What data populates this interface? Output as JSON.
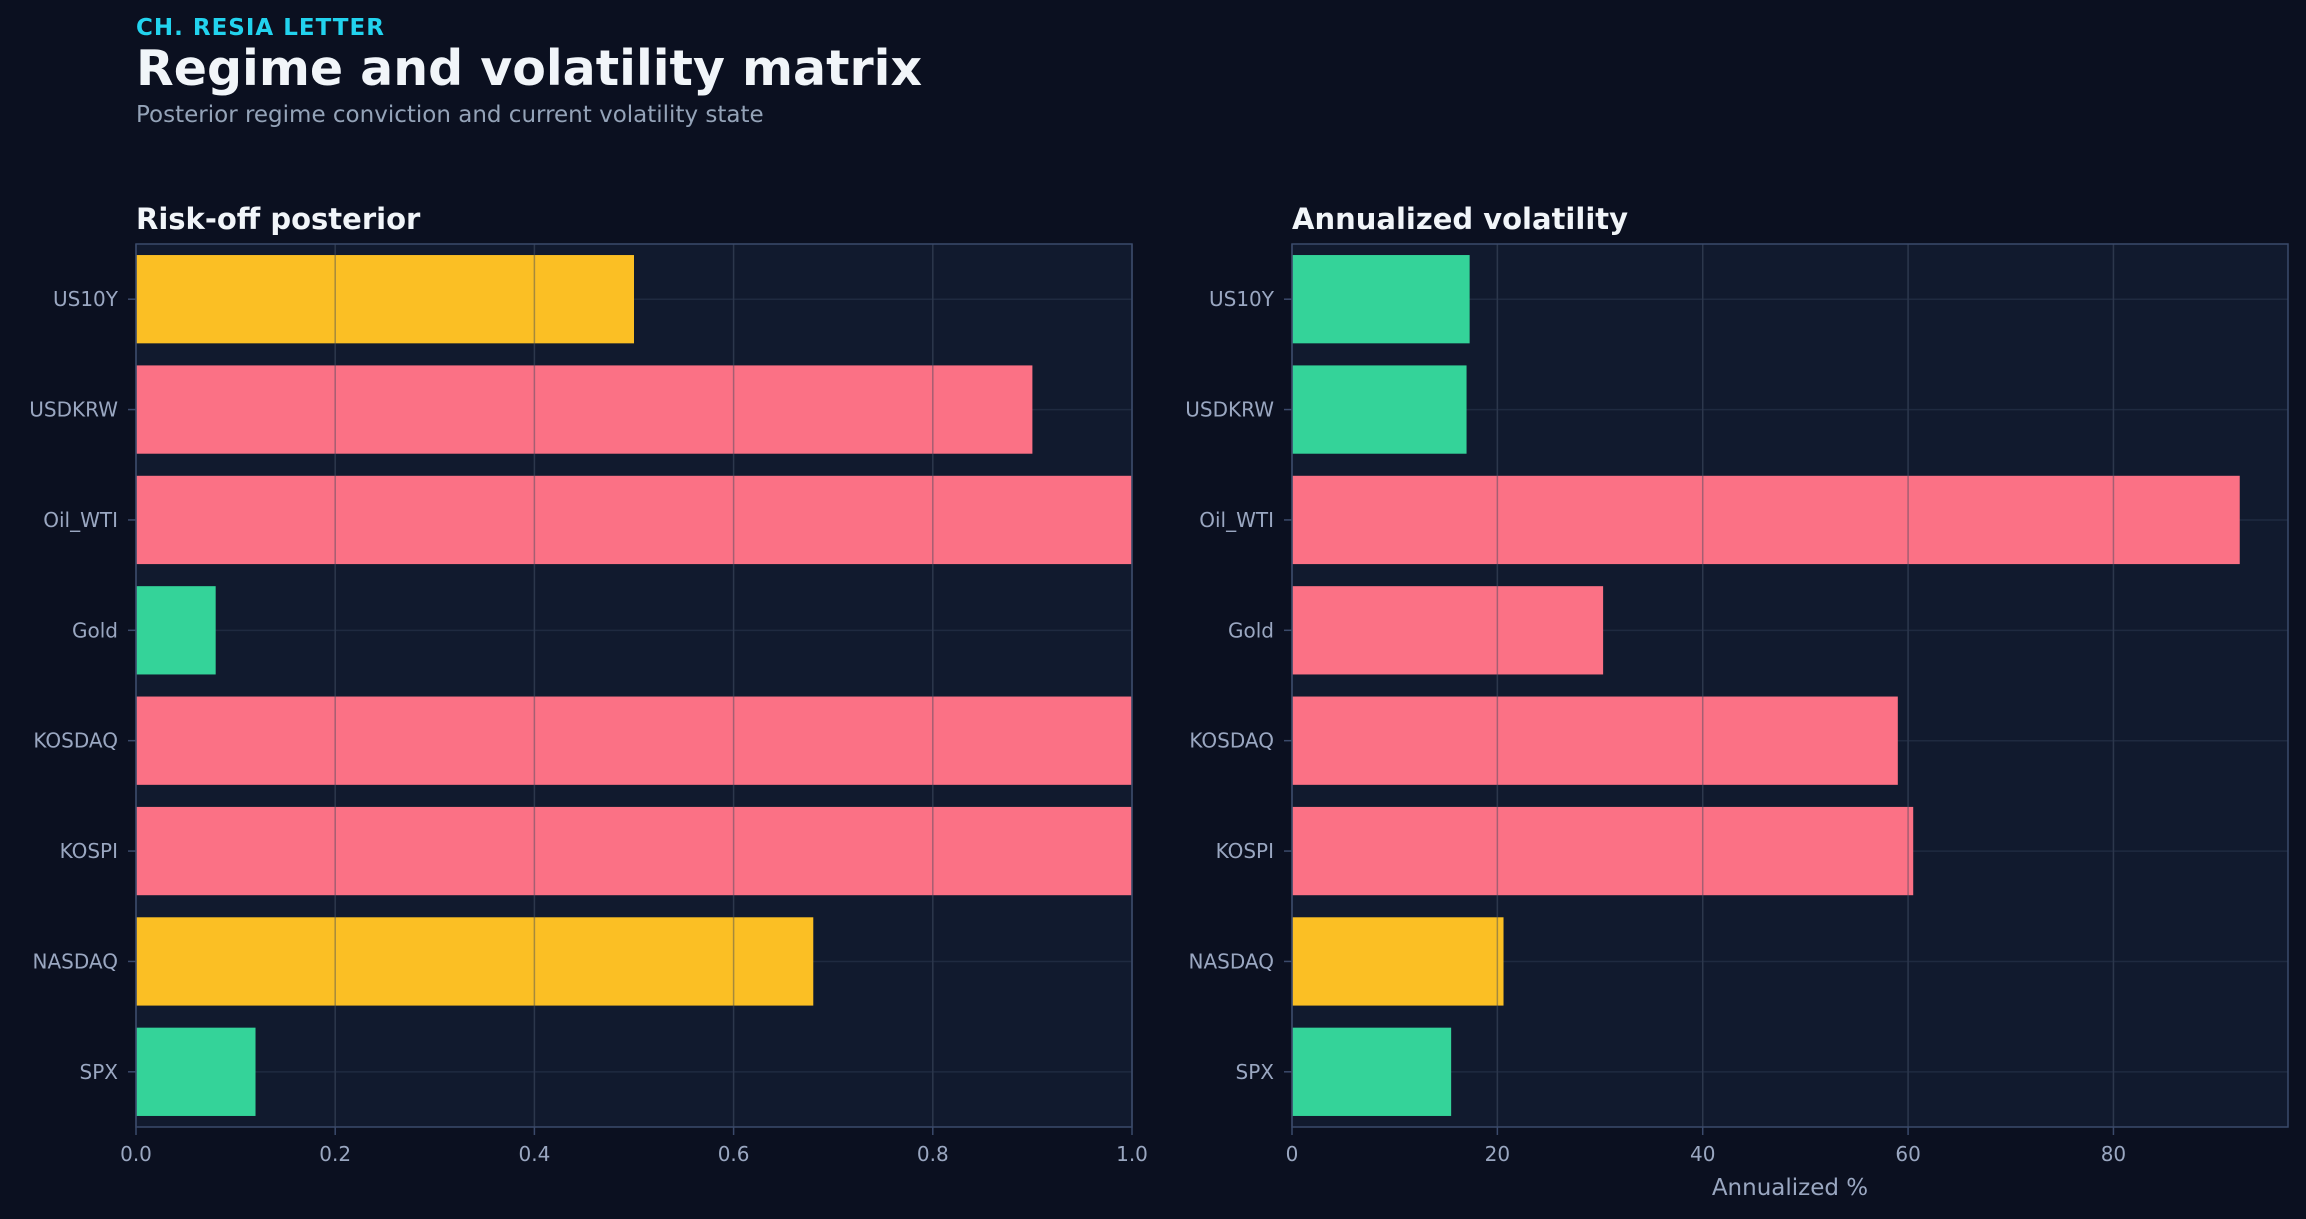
{
  "header": {
    "kicker": "CH. RESIA LETTER",
    "title": "Regime and volatility matrix",
    "subtitle": "Posterior regime conviction and current volatility state"
  },
  "colors": {
    "background": "#0b1020",
    "plot_bg": "#111a2e",
    "grid": "#1f2a40",
    "spine": "#3b4a6b",
    "tick_text": "#9aa7c1",
    "red": "#fb7185",
    "amber": "#fbbf24",
    "green": "#34d399"
  },
  "chart_data": [
    {
      "type": "bar",
      "orientation": "horizontal",
      "title": "Risk-off posterior",
      "xlabel": "",
      "ylabel": "",
      "categories": [
        "US10Y",
        "USDKRW",
        "Oil_WTI",
        "Gold",
        "KOSDAQ",
        "KOSPI",
        "NASDAQ",
        "SPX"
      ],
      "values": [
        0.5,
        0.9,
        1.0,
        0.08,
        1.0,
        1.0,
        0.68,
        0.12
      ],
      "bar_colors": [
        "amber",
        "red",
        "red",
        "green",
        "red",
        "red",
        "amber",
        "green"
      ],
      "xlim": [
        0,
        1.0
      ],
      "xticks": [
        "0.0",
        "0.2",
        "0.4",
        "0.6",
        "0.8",
        "1.0"
      ],
      "grid": true
    },
    {
      "type": "bar",
      "orientation": "horizontal",
      "title": "Annualized volatility",
      "xlabel": "Annualized %",
      "ylabel": "",
      "categories": [
        "US10Y",
        "USDKRW",
        "Oil_WTI",
        "Gold",
        "KOSDAQ",
        "KOSPI",
        "NASDAQ",
        "SPX"
      ],
      "values": [
        17.3,
        17.0,
        92.3,
        30.3,
        59.0,
        60.5,
        20.6,
        15.5
      ],
      "bar_colors": [
        "green",
        "green",
        "red",
        "red",
        "red",
        "red",
        "amber",
        "green"
      ],
      "xlim": [
        0,
        97
      ],
      "xticks": [
        "0",
        "20",
        "40",
        "60",
        "80"
      ],
      "grid": true
    }
  ]
}
